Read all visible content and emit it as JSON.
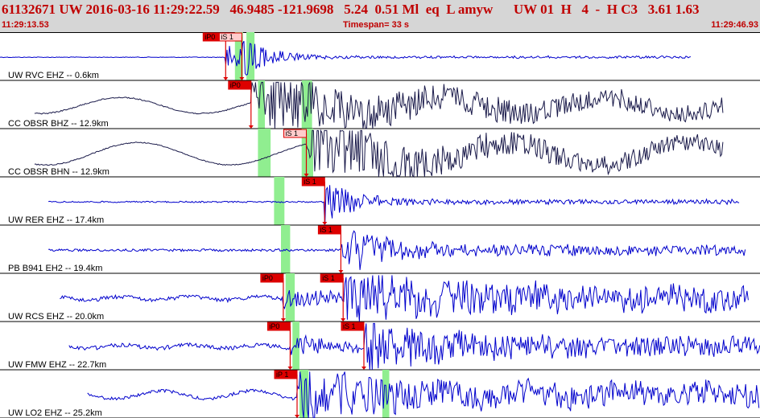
{
  "header": {
    "event_id": "61132671",
    "network": "UW",
    "datetime": "2016-03-16 11:29:22.59",
    "lat": "46.9485",
    "lon": "-121.9698",
    "depth": "5.24",
    "magnitude": "0.51",
    "mag_type": "Ml",
    "event_type": "eq",
    "location_type": "L",
    "analyst": "amyw",
    "source": "UW",
    "version": "01",
    "quality": "H",
    "field_4": "4",
    "field_dash": "-",
    "field_h": "H",
    "field_c3": "C3",
    "field_rms": "3.61",
    "field_err": "1.63"
  },
  "time_start": "11:29:13.53",
  "timespan_label": "Timespan=",
  "timespan_value": "33 s",
  "time_end": "11:29:46.93",
  "colors": {
    "header_bg": "#d6d6d6",
    "header_text": "#c00000",
    "trace_blue": "#0000cc",
    "trace_dark": "#1a1a4a",
    "pick_red": "#dd0000",
    "pick_box": "#ffcccc",
    "window_green": "#90ee90"
  },
  "chart_data": {
    "type": "seismogram",
    "x_unit": "seconds",
    "x_range": [
      0,
      33
    ],
    "traces": [
      {
        "label": "UW RVC EHZ -- 0.6km",
        "station": "RVC",
        "network": "UW",
        "channel": "EHZ",
        "distance_km": 0.6,
        "data_start": 0.0,
        "data_end": 30.0,
        "picks": [
          {
            "label": "iP0",
            "time": 9.8,
            "box_color": "red"
          },
          {
            "label": "iS 1",
            "time": 10.5,
            "box_color": "pink"
          }
        ],
        "windows": [
          [
            10.2,
            10.55
          ],
          [
            10.7,
            11.05
          ]
        ]
      },
      {
        "label": "CC OBSR BHZ -- 12.9km",
        "station": "OBSR",
        "network": "CC",
        "channel": "BHZ",
        "distance_km": 12.9,
        "data_start": 1.5,
        "data_end": 31.4,
        "picks": [
          {
            "label": "iP0",
            "time": 10.9,
            "box_color": "red"
          }
        ],
        "windows": [
          [
            11.2,
            11.5
          ],
          [
            13.1,
            13.55
          ]
        ]
      },
      {
        "label": "CC OBSR BHN -- 12.9km",
        "station": "OBSR",
        "network": "CC",
        "channel": "BHN",
        "distance_km": 12.9,
        "data_start": 1.5,
        "data_end": 31.4,
        "picks": [
          {
            "label": "iS 1",
            "time": 13.3,
            "box_color": "pink"
          }
        ],
        "windows": [
          [
            11.2,
            11.75
          ],
          [
            13.1,
            13.6
          ]
        ]
      },
      {
        "label": "UW RER EHZ -- 17.4km",
        "station": "RER",
        "network": "UW",
        "channel": "EHZ",
        "distance_km": 17.4,
        "data_start": 2.1,
        "data_end": 32.1,
        "picks": [
          {
            "label": "iS 1",
            "time": 14.1,
            "box_color": "red"
          }
        ],
        "windows": [
          [
            11.9,
            12.35
          ]
        ]
      },
      {
        "label": "PB B941 EH2 -- 19.4km",
        "station": "B941",
        "network": "PB",
        "channel": "EH2",
        "distance_km": 19.4,
        "data_start": 2.1,
        "data_end": 32.4,
        "picks": [
          {
            "label": "iS 1",
            "time": 14.8,
            "box_color": "red"
          }
        ],
        "windows": [
          [
            12.2,
            12.6
          ]
        ]
      },
      {
        "label": "UW RCS EHZ -- 20.0km",
        "station": "RCS",
        "network": "UW",
        "channel": "EHZ",
        "distance_km": 20.0,
        "data_start": 2.6,
        "data_end": 32.5,
        "picks": [
          {
            "label": "iP0",
            "time": 12.3,
            "box_color": "red"
          },
          {
            "label": "iS 1",
            "time": 14.9,
            "box_color": "red"
          }
        ],
        "windows": [
          [
            12.4,
            12.8
          ]
        ]
      },
      {
        "label": "UW FMW EHZ -- 22.7km",
        "station": "FMW",
        "network": "UW",
        "channel": "EHZ",
        "distance_km": 22.7,
        "data_start": 3.0,
        "data_end": 33.0,
        "picks": [
          {
            "label": "iP0",
            "time": 12.6,
            "box_color": "red"
          },
          {
            "label": "iS 1",
            "time": 15.8,
            "box_color": "red"
          }
        ],
        "windows": [
          [
            12.7,
            13.0
          ]
        ]
      },
      {
        "label": "UW LO2 EHZ -- 25.2km",
        "station": "LO2",
        "network": "UW",
        "channel": "EHZ",
        "distance_km": 25.2,
        "data_start": 3.8,
        "data_end": 33.0,
        "picks": [
          {
            "label": "iP 1",
            "time": 12.9,
            "box_color": "red"
          }
        ],
        "windows": [
          [
            13.0,
            13.4
          ],
          [
            16.6,
            16.9
          ]
        ]
      }
    ]
  }
}
